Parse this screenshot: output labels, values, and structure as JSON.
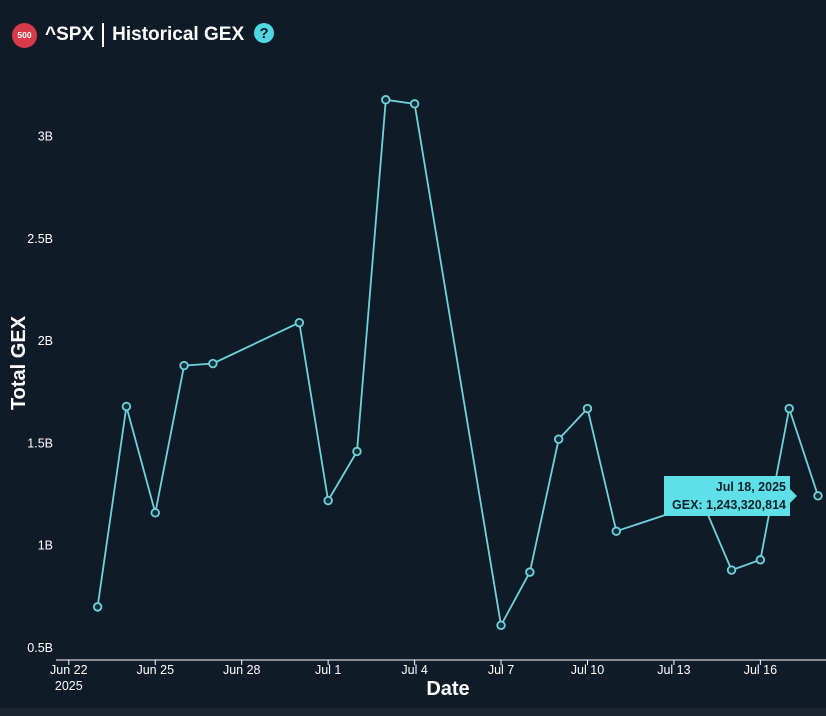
{
  "header": {
    "badge": "500",
    "ticker": "^SPX",
    "title": "Historical GEX",
    "help_icon": "?"
  },
  "colors": {
    "background": "#101b28",
    "line": "#6fd3dc",
    "tooltip_bg": "#5fe0e8",
    "badge": "#d83a4a"
  },
  "tooltip": {
    "date": "Jul 18, 2025",
    "value": "GEX: 1,243,320,814"
  },
  "chart_data": {
    "type": "line",
    "title": "",
    "xlabel": "Date",
    "ylabel": "Total GEX",
    "ylim": [
      0.45,
      3.35
    ],
    "xlim": [
      "2025-06-21",
      "2025-07-18"
    ],
    "grid": false,
    "y_ticks": [
      {
        "v": 0.5,
        "label": "0.5B"
      },
      {
        "v": 1.0,
        "label": "1B"
      },
      {
        "v": 1.5,
        "label": "1.5B"
      },
      {
        "v": 2.0,
        "label": "2B"
      },
      {
        "v": 2.5,
        "label": "2.5B"
      },
      {
        "v": 3.0,
        "label": "3B"
      }
    ],
    "x_ticks": [
      {
        "d": "2025-06-22",
        "label": "Jun 22",
        "sub": "2025"
      },
      {
        "d": "2025-06-25",
        "label": "Jun 25"
      },
      {
        "d": "2025-06-28",
        "label": "Jun 28"
      },
      {
        "d": "2025-07-01",
        "label": "Jul 1"
      },
      {
        "d": "2025-07-04",
        "label": "Jul 4"
      },
      {
        "d": "2025-07-07",
        "label": "Jul 7"
      },
      {
        "d": "2025-07-10",
        "label": "Jul 10"
      },
      {
        "d": "2025-07-13",
        "label": "Jul 13"
      },
      {
        "d": "2025-07-16",
        "label": "Jul 16"
      }
    ],
    "series": [
      {
        "points": [
          {
            "x": "2025-06-23",
            "y": 0.7
          },
          {
            "x": "2025-06-24",
            "y": 1.68
          },
          {
            "x": "2025-06-25",
            "y": 1.16
          },
          {
            "x": "2025-06-26",
            "y": 1.88
          },
          {
            "x": "2025-06-27",
            "y": 1.89
          },
          {
            "x": "2025-06-30",
            "y": 2.09
          },
          {
            "x": "2025-07-01",
            "y": 1.22
          },
          {
            "x": "2025-07-02",
            "y": 1.46
          },
          {
            "x": "2025-07-03",
            "y": 3.18
          },
          {
            "x": "2025-07-04",
            "y": 3.16
          },
          {
            "x": "2025-07-07",
            "y": 0.61
          },
          {
            "x": "2025-07-08",
            "y": 0.87
          },
          {
            "x": "2025-07-09",
            "y": 1.52
          },
          {
            "x": "2025-07-10",
            "y": 1.67
          },
          {
            "x": "2025-07-11",
            "y": 1.07
          },
          {
            "x": "2025-07-14",
            "y": 1.21
          },
          {
            "x": "2025-07-15",
            "y": 0.88
          },
          {
            "x": "2025-07-16",
            "y": 0.93
          },
          {
            "x": "2025-07-17",
            "y": 1.67
          },
          {
            "x": "2025-07-18",
            "y": 1.243
          }
        ]
      }
    ]
  }
}
